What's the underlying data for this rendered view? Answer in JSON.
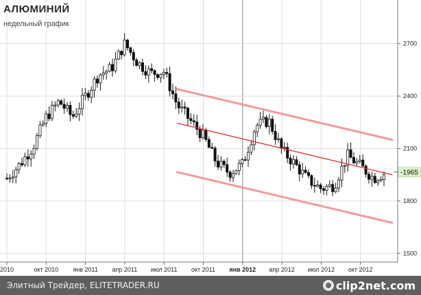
{
  "header": {
    "title": "АЛЮМИНИЙ",
    "subtitle": "недельный график"
  },
  "footer": {
    "source": "Элитный Трейдер, ELITETRADER.RU",
    "logo": "clip2net.com"
  },
  "colors": {
    "candle": "#111111",
    "channel": "#f29a9a",
    "trend": "#e03030",
    "price_tag_bg": "#ddf2c8",
    "footer_bg": "#5f5f5f"
  },
  "chart_data": {
    "type": "candlestick",
    "title": "АЛЮМИНИЙ",
    "subtitle": "недельный график",
    "ylim": [
      1450,
      2950
    ],
    "yticks": [
      1500,
      1800,
      2100,
      2400,
      2700
    ],
    "ytick_labels": [
      "1500",
      "1800",
      "2100",
      "2400",
      "2700"
    ],
    "last_price_label": "1965",
    "last_price": 1965,
    "xticks": [
      {
        "label": "2010",
        "date": "2010-07",
        "bold": false
      },
      {
        "label": "окт 2010",
        "date": "2010-10",
        "bold": false
      },
      {
        "label": "янв 2011",
        "date": "2011-01",
        "bold": false
      },
      {
        "label": "апр 2011",
        "date": "2011-04",
        "bold": false
      },
      {
        "label": "июл 2011",
        "date": "2011-07",
        "bold": false
      },
      {
        "label": "окт 2011",
        "date": "2011-10",
        "bold": false
      },
      {
        "label": "янв 2012",
        "date": "2012-01",
        "bold": true
      },
      {
        "label": "апр 2012",
        "date": "2012-04",
        "bold": false
      },
      {
        "label": "июл 2012",
        "date": "2012-07",
        "bold": false
      },
      {
        "label": "окт 2012",
        "date": "2012-10",
        "bold": false
      }
    ],
    "anchors": [
      [
        "2010-07",
        1930
      ],
      [
        "2010-08",
        2010
      ],
      [
        "2010-09",
        2110
      ],
      [
        "2010-10",
        2280
      ],
      [
        "2010-11",
        2370
      ],
      [
        "2010-12",
        2280
      ],
      [
        "2011-01",
        2400
      ],
      [
        "2011-02",
        2520
      ],
      [
        "2011-03",
        2560
      ],
      [
        "2011-04",
        2700
      ],
      [
        "2011-05",
        2590
      ],
      [
        "2011-06",
        2530
      ],
      [
        "2011-07",
        2540
      ],
      [
        "2011-08",
        2350
      ],
      [
        "2011-09",
        2260
      ],
      [
        "2011-10",
        2170
      ],
      [
        "2011-11",
        2020
      ],
      [
        "2011-12",
        1960
      ],
      [
        "2012-01",
        2010
      ],
      [
        "2012-02",
        2230
      ],
      [
        "2012-03",
        2260
      ],
      [
        "2012-04",
        2090
      ],
      [
        "2012-05",
        2010
      ],
      [
        "2012-06",
        1920
      ],
      [
        "2012-07",
        1870
      ],
      [
        "2012-08",
        1890
      ],
      [
        "2012-09",
        2060
      ],
      [
        "2012-10",
        2000
      ],
      [
        "2012-11",
        1930
      ],
      [
        "2012-12",
        1965
      ]
    ],
    "lines": [
      {
        "name": "channel-upper",
        "from": [
          "2011-08",
          2440
        ],
        "to": [
          "2012-12",
          2150
        ]
      },
      {
        "name": "trend",
        "from": [
          "2011-08",
          2245
        ],
        "to": [
          "2012-12",
          1950
        ]
      },
      {
        "name": "channel-lower",
        "from": [
          "2011-08",
          1965
        ],
        "to": [
          "2012-12",
          1675
        ]
      }
    ]
  }
}
